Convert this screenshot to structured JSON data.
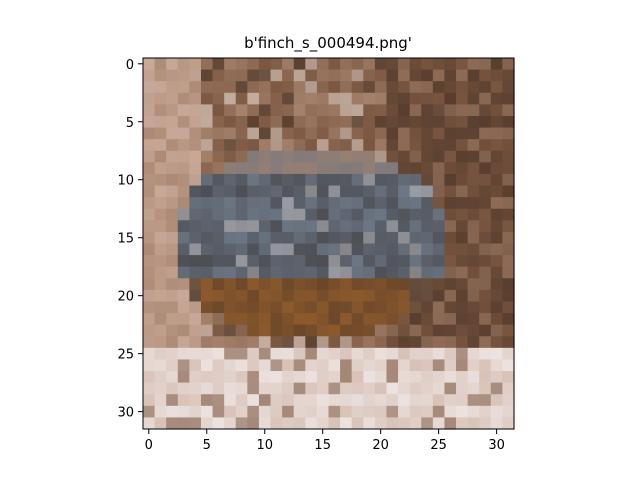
{
  "chart_data": {
    "type": "heatmap",
    "title": "b'finch_s_000494.png'",
    "xlabel": "",
    "ylabel": "",
    "image_size": [
      32,
      32
    ],
    "x_ticks": [
      0,
      5,
      10,
      15,
      20,
      25,
      30
    ],
    "y_ticks": [
      0,
      5,
      10,
      15,
      20,
      25,
      30
    ],
    "xlim": [
      -0.5,
      31.5
    ],
    "ylim": [
      31.5,
      -0.5
    ],
    "grid": false,
    "colors": {
      "dark_brown": "#4a3428",
      "brown": "#7a5640",
      "tan": "#a5826c",
      "pink_beige": "#c8a898",
      "grey_blue": "#6c7684",
      "dark_grey": "#4d4f55",
      "orange_brown": "#8c5a2c",
      "near_white": "#ece2df"
    }
  }
}
